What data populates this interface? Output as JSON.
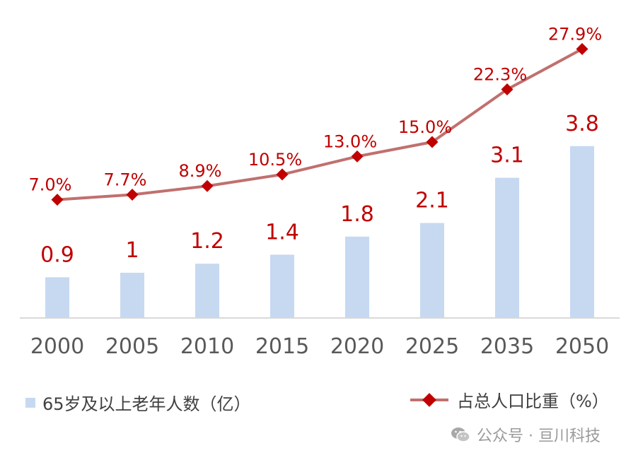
{
  "chart_data": {
    "type": "bar+line",
    "categories": [
      "2000",
      "2005",
      "2010",
      "2015",
      "2020",
      "2025",
      "2035",
      "2050"
    ],
    "series": [
      {
        "name": "65岁及以上老年人数（亿）",
        "type": "bar",
        "values": [
          0.9,
          1,
          1.2,
          1.4,
          1.8,
          2.1,
          3.1,
          3.8
        ],
        "labels": [
          "0.9",
          "1",
          "1.2",
          "1.4",
          "1.8",
          "2.1",
          "3.1",
          "3.8"
        ],
        "color": "#c6d9f1"
      },
      {
        "name": "占总人口比重（%）",
        "type": "line",
        "values": [
          7.0,
          7.7,
          8.9,
          10.5,
          13.0,
          15.0,
          22.3,
          27.9
        ],
        "labels": [
          "7.0%",
          "7.7%",
          "8.9%",
          "10.5%",
          "13.0%",
          "15.0%",
          "22.3%",
          "27.9%"
        ],
        "line_color": "#c0706e",
        "marker_color": "#c00000"
      }
    ],
    "label_color": "#c00000",
    "tick_color": "#595959",
    "grid": false,
    "legend_position": "bottom"
  },
  "legend": {
    "bar_label": "65岁及以上老年人数（亿）",
    "line_label": "占总人口比重（%）"
  },
  "watermark": {
    "text": "公众号 · 亘川科技"
  }
}
